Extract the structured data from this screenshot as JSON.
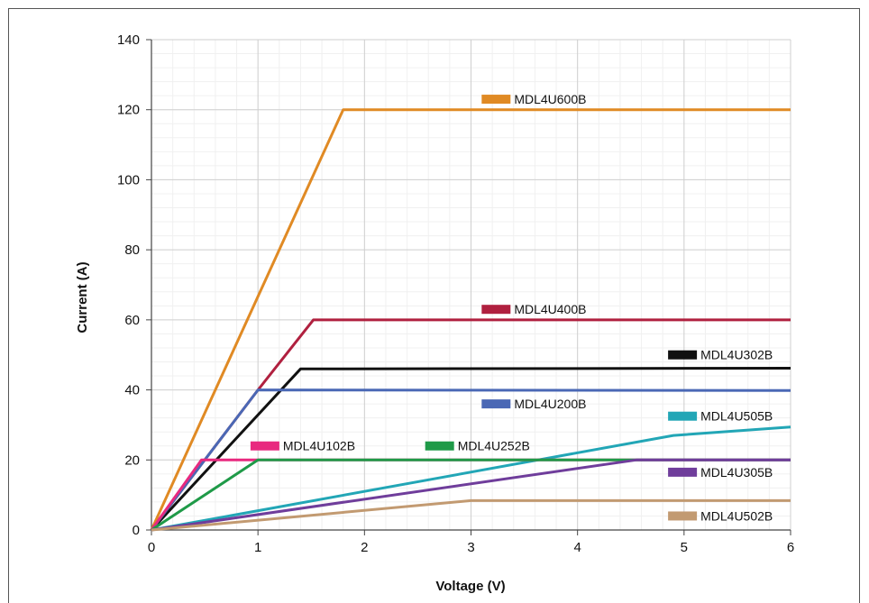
{
  "chart_data": {
    "type": "line",
    "title": "",
    "xlabel": "Voltage (V)",
    "ylabel": "Current (A)",
    "xlim": [
      0,
      6
    ],
    "ylim": [
      0,
      140
    ],
    "xticks": [
      0,
      1,
      2,
      3,
      4,
      5,
      6
    ],
    "yticks": [
      0,
      20,
      40,
      60,
      80,
      100,
      120,
      140
    ],
    "grid": true,
    "minor_grid": true,
    "legend": "inline labels near each line",
    "series": [
      {
        "name": "MDL4U600B",
        "color": "#e08a24",
        "points": [
          [
            0,
            0
          ],
          [
            1.8,
            120
          ],
          [
            6,
            120
          ]
        ]
      },
      {
        "name": "MDL4U400B",
        "color": "#b0203f",
        "points": [
          [
            0,
            0
          ],
          [
            1,
            40
          ],
          [
            1.52,
            60
          ],
          [
            6,
            60
          ]
        ]
      },
      {
        "name": "MDL4U302B",
        "color": "#111111",
        "points": [
          [
            0,
            0
          ],
          [
            1.4,
            46
          ],
          [
            6,
            46.2
          ]
        ]
      },
      {
        "name": "MDL4U200B",
        "color": "#4a68b5",
        "points": [
          [
            0,
            0
          ],
          [
            1,
            40
          ],
          [
            6,
            39.8
          ]
        ]
      },
      {
        "name": "MDL4U505B",
        "color": "#22a6b6",
        "points": [
          [
            0,
            0
          ],
          [
            4.9,
            27
          ],
          [
            6,
            29.4
          ]
        ]
      },
      {
        "name": "MDL4U102B",
        "color": "#e8297f",
        "points": [
          [
            0,
            0
          ],
          [
            0.47,
            20
          ],
          [
            6,
            20
          ]
        ]
      },
      {
        "name": "MDL4U252B",
        "color": "#1f9a48",
        "points": [
          [
            0,
            0
          ],
          [
            1,
            20
          ],
          [
            6,
            20
          ]
        ]
      },
      {
        "name": "MDL4U305B",
        "color": "#6f3d9b",
        "points": [
          [
            0,
            0
          ],
          [
            4.55,
            20
          ],
          [
            6,
            20
          ]
        ]
      },
      {
        "name": "MDL4U502B",
        "color": "#c29a71",
        "points": [
          [
            0,
            0
          ],
          [
            3,
            8.4
          ],
          [
            6,
            8.4
          ]
        ]
      }
    ],
    "labels": [
      {
        "series": "MDL4U600B",
        "x": 3.1,
        "y": 123
      },
      {
        "series": "MDL4U400B",
        "x": 3.1,
        "y": 63
      },
      {
        "series": "MDL4U302B",
        "x": 4.85,
        "y": 50
      },
      {
        "series": "MDL4U200B",
        "x": 3.1,
        "y": 36
      },
      {
        "series": "MDL4U505B",
        "x": 4.85,
        "y": 32.5
      },
      {
        "series": "MDL4U102B",
        "x": 0.93,
        "y": 24
      },
      {
        "series": "MDL4U252B",
        "x": 2.57,
        "y": 24
      },
      {
        "series": "MDL4U305B",
        "x": 4.85,
        "y": 16.5
      },
      {
        "series": "MDL4U502B",
        "x": 4.85,
        "y": 4
      }
    ]
  }
}
